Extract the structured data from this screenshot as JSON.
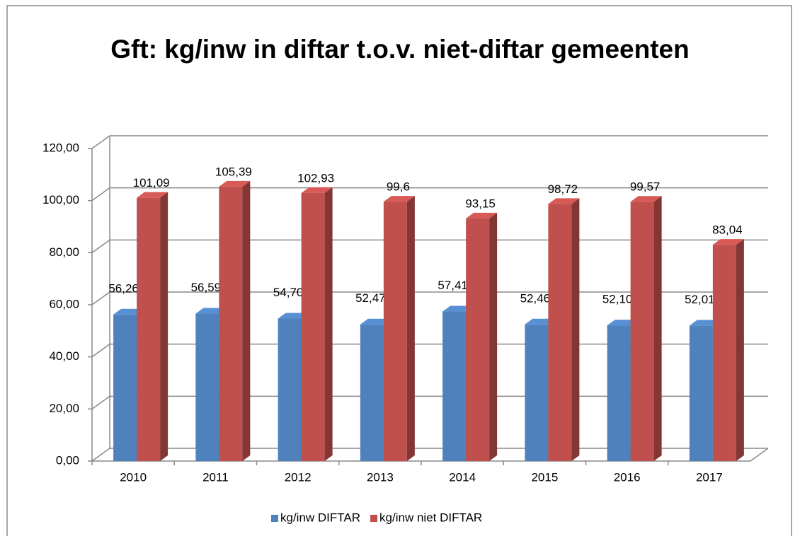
{
  "chart_data": {
    "type": "bar3d",
    "title": "Gft: kg/inw in diftar t.o.v. niet-diftar gemeenten",
    "categories": [
      "2010",
      "2011",
      "2012",
      "2013",
      "2014",
      "2015",
      "2016",
      "2017"
    ],
    "series": [
      {
        "name": "kg/inw DIFTAR",
        "color": "#4f81bd",
        "values": [
          56.26,
          56.59,
          54.7,
          52.47,
          57.41,
          52.46,
          52.1,
          52.01
        ],
        "value_labels": [
          "56,26",
          "56,59",
          "54,70",
          "52,47",
          "57,41",
          "52,46",
          "52,10",
          "52,01"
        ]
      },
      {
        "name": "kg/inw niet DIFTAR",
        "color": "#c0504d",
        "values": [
          101.09,
          105.39,
          102.93,
          99.6,
          93.15,
          98.72,
          99.57,
          83.04
        ],
        "value_labels": [
          "101,09",
          "105,39",
          "102,93",
          "99,6",
          "93,15",
          "98,72",
          "99,57",
          "83,04"
        ]
      }
    ],
    "ylim": [
      0,
      120
    ],
    "yticks": [
      {
        "value": 0,
        "label": "0,00"
      },
      {
        "value": 20,
        "label": "20,00"
      },
      {
        "value": 40,
        "label": "40,00"
      },
      {
        "value": 60,
        "label": "60,00"
      },
      {
        "value": 80,
        "label": "80,00"
      },
      {
        "value": 100,
        "label": "100,00"
      },
      {
        "value": 120,
        "label": "120,00"
      }
    ],
    "grid": true,
    "legend": "bottom"
  }
}
